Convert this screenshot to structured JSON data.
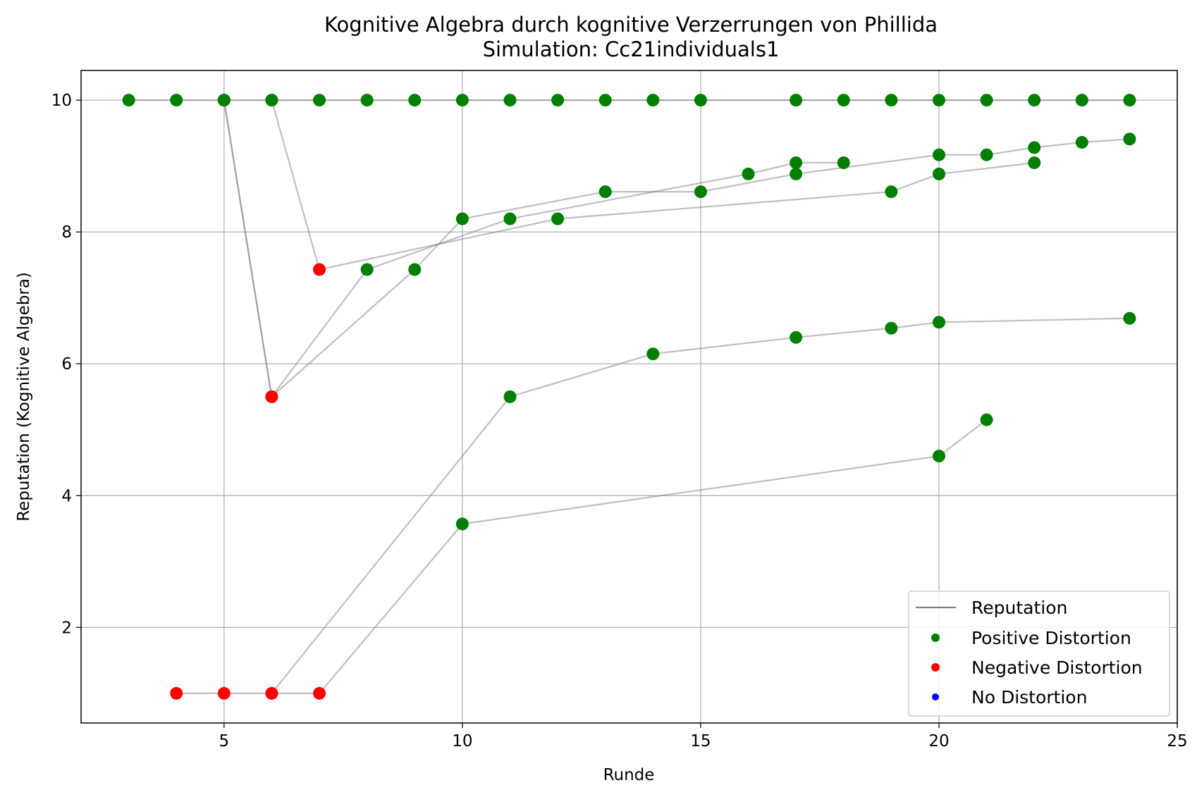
{
  "chart_data": {
    "type": "line",
    "title": "Kognitive Algebra durch kognitive Verzerrungen von Phillida",
    "subtitle": "Simulation: Cc21individuals1",
    "xlabel": "Runde",
    "ylabel": "Reputation (Kognitive Algebra)",
    "xlim": [
      2,
      25
    ],
    "ylim": [
      0.55,
      10.45
    ],
    "xticks": [
      5,
      10,
      15,
      20,
      25
    ],
    "yticks": [
      2,
      4,
      6,
      8,
      10
    ],
    "grid": true,
    "legend_position": "lower-right",
    "colors": {
      "line": "#808080",
      "positive": "#008000",
      "negative": "#ff0000",
      "none": "#0000ff",
      "grid": "#b0b0b0"
    },
    "legend": [
      {
        "label": "Reputation",
        "kind": "line",
        "color": "#808080"
      },
      {
        "label": "Positive Distortion",
        "kind": "marker",
        "color": "#008000"
      },
      {
        "label": "Negative Distortion",
        "kind": "marker",
        "color": "#ff0000"
      },
      {
        "label": "No Distortion",
        "kind": "marker",
        "color": "#0000ff"
      }
    ],
    "series": [
      {
        "points": [
          [
            3,
            10,
            "positive"
          ],
          [
            4,
            10,
            "positive"
          ],
          [
            5,
            10,
            "positive"
          ],
          [
            6,
            10,
            "positive"
          ],
          [
            7,
            10,
            "positive"
          ],
          [
            8,
            10,
            "positive"
          ],
          [
            9,
            10,
            "positive"
          ],
          [
            10,
            10,
            "positive"
          ],
          [
            11,
            10,
            "positive"
          ],
          [
            12,
            10,
            "positive"
          ],
          [
            13,
            10,
            "positive"
          ],
          [
            14,
            10,
            "positive"
          ],
          [
            15,
            10,
            "positive"
          ],
          [
            17,
            10,
            "positive"
          ],
          [
            18,
            10,
            "positive"
          ],
          [
            19,
            10,
            "positive"
          ],
          [
            20,
            10,
            "positive"
          ],
          [
            21,
            10,
            "positive"
          ],
          [
            22,
            10,
            "positive"
          ],
          [
            23,
            10,
            "positive"
          ],
          [
            24,
            10,
            "positive"
          ]
        ]
      },
      {
        "points": [
          [
            5,
            10,
            "positive"
          ],
          [
            6,
            5.5,
            "negative"
          ],
          [
            8,
            7.43,
            "positive"
          ],
          [
            11,
            8.2,
            "positive"
          ],
          [
            16,
            8.88,
            "positive"
          ],
          [
            17,
            9.05,
            "positive"
          ],
          [
            18,
            9.05,
            "positive"
          ]
        ]
      },
      {
        "points": [
          [
            5,
            10,
            "positive"
          ],
          [
            6,
            5.5,
            "negative"
          ],
          [
            9,
            7.43,
            "positive"
          ],
          [
            10,
            8.2,
            "positive"
          ],
          [
            13,
            8.61,
            "positive"
          ],
          [
            15,
            8.61,
            "positive"
          ],
          [
            17,
            8.88,
            "positive"
          ],
          [
            20,
            9.17,
            "positive"
          ],
          [
            21,
            9.17,
            "positive"
          ],
          [
            22,
            9.28,
            "positive"
          ],
          [
            23,
            9.36,
            "positive"
          ],
          [
            24,
            9.41,
            "positive"
          ]
        ]
      },
      {
        "points": [
          [
            6,
            10,
            "positive"
          ],
          [
            7,
            7.43,
            "negative"
          ],
          [
            12,
            8.2,
            "positive"
          ],
          [
            19,
            8.61,
            "positive"
          ],
          [
            20,
            8.88,
            "positive"
          ],
          [
            22,
            9.05,
            "positive"
          ]
        ]
      },
      {
        "points": [
          [
            4,
            1,
            "negative"
          ],
          [
            5,
            1,
            "negative"
          ],
          [
            6,
            1,
            "negative"
          ],
          [
            11,
            5.5,
            "positive"
          ],
          [
            14,
            6.15,
            "positive"
          ],
          [
            17,
            6.4,
            "positive"
          ],
          [
            19,
            6.54,
            "positive"
          ],
          [
            20,
            6.63,
            "positive"
          ],
          [
            24,
            6.69,
            "positive"
          ]
        ]
      },
      {
        "points": [
          [
            6,
            1,
            "negative"
          ],
          [
            7,
            1,
            "negative"
          ],
          [
            10,
            3.57,
            "positive"
          ],
          [
            20,
            4.6,
            "positive"
          ],
          [
            21,
            5.15,
            "positive"
          ]
        ]
      }
    ]
  }
}
